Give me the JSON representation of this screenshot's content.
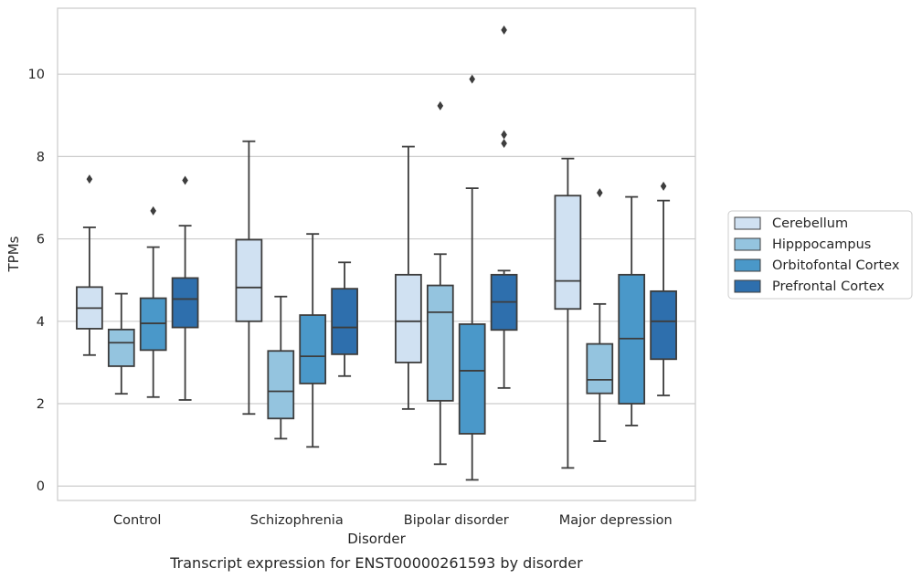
{
  "caption": "Transcript expression for ENST00000261593 by disorder",
  "chart_data": {
    "type": "boxplot",
    "xlabel": "Disorder",
    "ylabel": "TPMs",
    "ylim": [
      -0.35,
      11.6
    ],
    "yticks": [
      0,
      2,
      4,
      6,
      8,
      10
    ],
    "grid": "horizontal",
    "legend_position": "right",
    "categories": [
      "Control",
      "Schizophrenia",
      "Bipolar disorder",
      "Major depression"
    ],
    "series": [
      {
        "name": "Cerebellum",
        "color": "#d0e1f2",
        "boxes": [
          {
            "whislo": 3.18,
            "q1": 3.82,
            "med": 4.32,
            "q3": 4.83,
            "whishi": 6.28,
            "fliers": [
              7.45
            ]
          },
          {
            "whislo": 1.75,
            "q1": 4.0,
            "med": 4.82,
            "q3": 5.98,
            "whishi": 8.37,
            "fliers": []
          },
          {
            "whislo": 1.87,
            "q1": 3.0,
            "med": 4.0,
            "q3": 5.13,
            "whishi": 8.24,
            "fliers": []
          },
          {
            "whislo": 0.44,
            "q1": 4.3,
            "med": 4.98,
            "q3": 7.05,
            "whishi": 7.95,
            "fliers": []
          }
        ]
      },
      {
        "name": "Hipppocampus",
        "color": "#94c4df",
        "boxes": [
          {
            "whislo": 2.24,
            "q1": 2.91,
            "med": 3.48,
            "q3": 3.8,
            "whishi": 4.67,
            "fliers": []
          },
          {
            "whislo": 1.15,
            "q1": 1.64,
            "med": 2.3,
            "q3": 3.28,
            "whishi": 4.6,
            "fliers": []
          },
          {
            "whislo": 0.53,
            "q1": 2.07,
            "med": 4.22,
            "q3": 4.87,
            "whishi": 5.63,
            "fliers": [
              9.23
            ]
          },
          {
            "whislo": 1.09,
            "q1": 2.25,
            "med": 2.58,
            "q3": 3.45,
            "whishi": 4.42,
            "fliers": [
              7.12
            ]
          }
        ]
      },
      {
        "name": "Orbitofontal Cortex",
        "color": "#4a98c9",
        "boxes": [
          {
            "whislo": 2.16,
            "q1": 3.3,
            "med": 3.95,
            "q3": 4.56,
            "whishi": 5.8,
            "fliers": [
              6.68
            ]
          },
          {
            "whislo": 0.95,
            "q1": 2.49,
            "med": 3.15,
            "q3": 4.15,
            "whishi": 6.12,
            "fliers": []
          },
          {
            "whislo": 0.15,
            "q1": 1.27,
            "med": 2.8,
            "q3": 3.93,
            "whishi": 7.23,
            "fliers": [
              9.88
            ]
          },
          {
            "whislo": 1.47,
            "q1": 2.0,
            "med": 3.58,
            "q3": 5.13,
            "whishi": 7.02,
            "fliers": []
          }
        ]
      },
      {
        "name": "Prefrontal Cortex",
        "color": "#2e6fad",
        "boxes": [
          {
            "whislo": 2.09,
            "q1": 3.85,
            "med": 4.54,
            "q3": 5.05,
            "whishi": 6.32,
            "fliers": [
              7.42
            ]
          },
          {
            "whislo": 2.67,
            "q1": 3.2,
            "med": 3.85,
            "q3": 4.79,
            "whishi": 5.43,
            "fliers": []
          },
          {
            "whislo": 2.38,
            "q1": 3.79,
            "med": 4.47,
            "q3": 5.13,
            "whishi": 5.23,
            "fliers": [
              8.32,
              8.53,
              11.07
            ]
          },
          {
            "whislo": 2.2,
            "q1": 3.08,
            "med": 4.0,
            "q3": 4.73,
            "whishi": 6.93,
            "fliers": [
              7.28
            ]
          }
        ]
      }
    ]
  }
}
